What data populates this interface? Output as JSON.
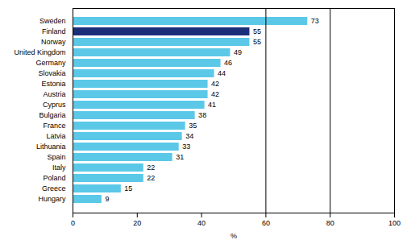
{
  "chart_data": {
    "type": "bar",
    "orientation": "horizontal",
    "categories": [
      "Sweden",
      "Finland",
      "Norway",
      "United Kingdom",
      "Germany",
      "Slovakia",
      "Estonia",
      "Austria",
      "Cyprus",
      "Bulgaria",
      "France",
      "Latvia",
      "Lithuania",
      "Spain",
      "Italy",
      "Poland",
      "Greece",
      "Hungary"
    ],
    "values": [
      73,
      55,
      55,
      49,
      46,
      44,
      42,
      42,
      41,
      38,
      35,
      34,
      33,
      31,
      22,
      22,
      15,
      9
    ],
    "colors": [
      "#5bc8e8",
      "#1a2e7a",
      "#5bc8e8",
      "#5bc8e8",
      "#5bc8e8",
      "#5bc8e8",
      "#5bc8e8",
      "#5bc8e8",
      "#5bc8e8",
      "#5bc8e8",
      "#5bc8e8",
      "#5bc8e8",
      "#5bc8e8",
      "#5bc8e8",
      "#5bc8e8",
      "#5bc8e8",
      "#5bc8e8",
      "#5bc8e8"
    ],
    "xlabel": "%",
    "xlim": [
      0,
      100
    ],
    "xticks": [
      0,
      20,
      40,
      60,
      80,
      100
    ],
    "vlines": [
      60,
      80
    ],
    "data_labels": true,
    "grid": false
  }
}
